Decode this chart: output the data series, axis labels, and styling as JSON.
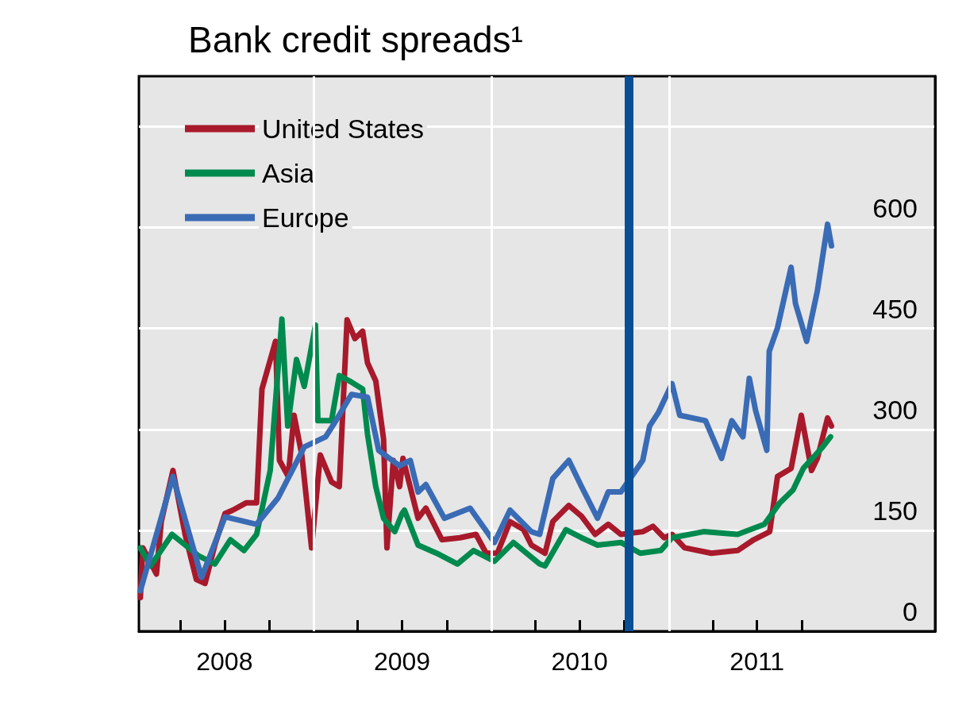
{
  "chart_data": {
    "type": "line",
    "title": "Bank credit spreads¹",
    "xlim": [
      "2008-01-07",
      "2012-07-01"
    ],
    "xticks": [
      {
        "value": "2008-04-01",
        "label": null
      },
      {
        "value": "2008-07-01",
        "label": "2008"
      },
      {
        "value": "2008-10-01",
        "label": null
      },
      {
        "value": "2009-01-01",
        "label": null
      },
      {
        "value": "2009-04-01",
        "label": null
      },
      {
        "value": "2009-07-01",
        "label": "2009"
      },
      {
        "value": "2009-10-01",
        "label": null
      },
      {
        "value": "2010-01-01",
        "label": null
      },
      {
        "value": "2010-04-01",
        "label": null
      },
      {
        "value": "2010-07-01",
        "label": "2010"
      },
      {
        "value": "2010-10-01",
        "label": null
      },
      {
        "value": "2011-01-01",
        "label": null
      },
      {
        "value": "2011-04-01",
        "label": null
      },
      {
        "value": "2011-07-01",
        "label": "2011"
      },
      {
        "value": "2011-10-01",
        "label": null
      }
    ],
    "ylim": [
      0,
      825
    ],
    "yticks": [
      0,
      150,
      300,
      450,
      600,
      {
        "value": 750,
        "label": null
      }
    ],
    "grid": "y",
    "legend": "top left",
    "line_style": "solid",
    "ref_lines": [
      {
        "axis": "x",
        "value": "2009-01-01",
        "color": "#ffffff"
      },
      {
        "axis": "x",
        "value": "2010-01-01",
        "color": "#ffffff"
      },
      {
        "axis": "x",
        "value": "2011-01-01",
        "color": "#ffffff"
      },
      {
        "axis": "x",
        "value": "2010-10-11",
        "color": "#0a4f95"
      }
    ],
    "series": [
      {
        "name": "United States",
        "color": "#a8192b",
        "x": [
          "2008-01-10",
          "2008-01-15",
          "2008-02-12",
          "2008-02-22",
          "2008-03-17",
          "2008-04-11",
          "2008-05-04",
          "2008-05-22",
          "2008-06-11",
          "2008-07-02",
          "2008-07-18",
          "2008-08-15",
          "2008-09-05",
          "2008-09-16",
          "2008-10-14",
          "2008-10-22",
          "2008-11-09",
          "2008-11-21",
          "2008-12-07",
          "2008-12-27",
          "2009-01-14",
          "2009-02-06",
          "2009-02-22",
          "2009-03-10",
          "2009-03-26",
          "2009-04-11",
          "2009-04-21",
          "2009-05-08",
          "2009-05-24",
          "2009-05-31",
          "2009-06-13",
          "2009-06-26",
          "2009-07-03",
          "2009-07-11",
          "2009-08-03",
          "2009-08-19",
          "2009-09-21",
          "2009-10-28",
          "2009-11-30",
          "2009-12-21",
          "2010-01-13",
          "2010-02-08",
          "2010-03-08",
          "2010-03-24",
          "2010-04-21",
          "2010-05-07",
          "2010-06-09",
          "2010-07-05",
          "2010-08-02",
          "2010-08-29",
          "2010-09-24",
          "2010-11-08",
          "2010-11-29",
          "2010-12-22",
          "2011-01-07",
          "2011-02-02",
          "2011-03-29",
          "2011-05-22",
          "2011-06-24",
          "2011-07-27",
          "2011-08-12",
          "2011-09-09",
          "2011-09-30",
          "2011-10-21",
          "2011-11-02",
          "2011-11-23",
          "2011-12-01"
        ],
        "values": [
          50,
          124,
          85,
          163,
          239,
          144,
          77,
          71,
          128,
          175,
          180,
          191,
          191,
          360,
          431,
          254,
          230,
          321,
          262,
          124,
          262,
          222,
          215,
          463,
          435,
          446,
          399,
          372,
          286,
          124,
          254,
          215,
          257,
          234,
          168,
          183,
          136,
          139,
          144,
          116,
          116,
          163,
          151,
          128,
          116,
          163,
          187,
          171,
          144,
          159,
          144,
          148,
          156,
          139,
          144,
          124,
          116,
          120,
          136,
          148,
          230,
          242,
          321,
          239,
          257,
          317,
          305
        ]
      },
      {
        "name": "Asia",
        "color": "#008a4e",
        "x": [
          "2008-01-10",
          "2008-01-31",
          "2008-03-15",
          "2008-05-09",
          "2008-06-11",
          "2008-07-13",
          "2008-08-10",
          "2008-09-05",
          "2008-10-03",
          "2008-10-27",
          "2008-11-08",
          "2008-11-26",
          "2008-12-12",
          "2009-01-04",
          "2009-01-09",
          "2009-02-06",
          "2009-02-22",
          "2009-03-15",
          "2009-04-11",
          "2009-04-21",
          "2009-05-08",
          "2009-05-24",
          "2009-06-16",
          "2009-07-01",
          "2009-07-06",
          "2009-08-03",
          "2009-09-10",
          "2009-10-23",
          "2009-11-25",
          "2010-01-07",
          "2010-02-15",
          "2010-04-10",
          "2010-04-21",
          "2010-06-03",
          "2010-07-05",
          "2010-08-07",
          "2010-09-24",
          "2010-11-03",
          "2010-12-15",
          "2011-01-07",
          "2011-03-13",
          "2011-05-22",
          "2011-07-16",
          "2011-08-17",
          "2011-09-13",
          "2011-10-04",
          "2011-11-13",
          "2011-11-29"
        ],
        "values": [
          124,
          97,
          144,
          112,
          100,
          136,
          120,
          144,
          239,
          464,
          305,
          404,
          364,
          455,
          313,
          313,
          380,
          372,
          360,
          293,
          215,
          168,
          148,
          175,
          180,
          128,
          116,
          100,
          120,
          104,
          132,
          100,
          97,
          151,
          139,
          128,
          132,
          116,
          120,
          139,
          148,
          144,
          159,
          191,
          210,
          242,
          274,
          289
        ]
      },
      {
        "name": "Europe",
        "color": "#3a6bb5",
        "x": [
          "2008-01-10",
          "2008-03-17",
          "2008-05-15",
          "2008-07-02",
          "2008-09-05",
          "2008-10-19",
          "2008-12-12",
          "2009-01-25",
          "2009-02-15",
          "2009-03-19",
          "2009-04-21",
          "2009-05-14",
          "2009-06-05",
          "2009-06-26",
          "2009-07-18",
          "2009-08-03",
          "2009-08-19",
          "2009-09-26",
          "2009-11-18",
          "2010-01-07",
          "2010-02-08",
          "2010-03-24",
          "2010-04-10",
          "2010-05-07",
          "2010-06-09",
          "2010-07-05",
          "2010-08-07",
          "2010-08-29",
          "2010-09-24",
          "2010-11-08",
          "2010-11-22",
          "2010-12-10",
          "2011-01-07",
          "2011-01-23",
          "2011-03-17",
          "2011-04-19",
          "2011-05-10",
          "2011-06-02",
          "2011-06-15",
          "2011-06-28",
          "2011-07-21",
          "2011-07-26",
          "2011-08-12",
          "2011-09-09",
          "2011-09-18",
          "2011-10-11",
          "2011-11-02",
          "2011-11-23",
          "2011-12-01"
        ],
        "values": [
          60,
          230,
          80,
          170,
          159,
          198,
          274,
          289,
          313,
          352,
          348,
          269,
          257,
          246,
          254,
          207,
          218,
          168,
          183,
          132,
          180,
          148,
          144,
          227,
          254,
          215,
          168,
          207,
          207,
          254,
          305,
          325,
          368,
          321,
          313,
          257,
          313,
          289,
          376,
          328,
          269,
          416,
          451,
          541,
          487,
          431,
          506,
          605,
          573
        ]
      }
    ]
  }
}
